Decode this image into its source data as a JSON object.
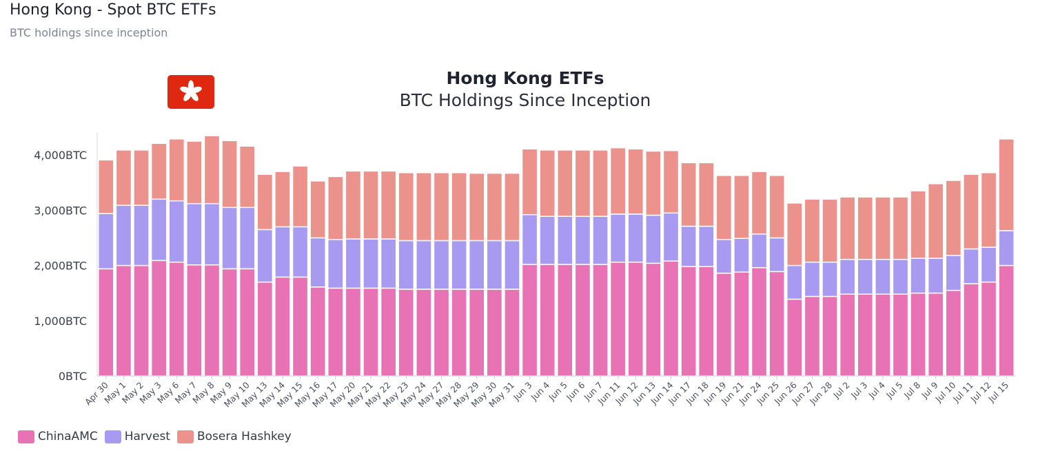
{
  "header": {
    "title": "Hong Kong - Spot BTC ETFs",
    "subtitle": "BTC holdings since inception"
  },
  "colors": {
    "ChinaAMC": "#e772b4",
    "Harvest": "#a89af0",
    "Bosera Hashkey": "#ec928d",
    "flag": "#de2910"
  },
  "chart_data": {
    "type": "bar",
    "stacked": true,
    "title": "Hong Kong ETFs",
    "subtitle": "BTC Holdings Since Inception",
    "xlabel": "",
    "ylabel": "",
    "ylim": [
      0,
      4400
    ],
    "yticks": [
      0,
      1000,
      2000,
      3000,
      4000
    ],
    "ytick_labels": [
      "0BTC",
      "1,000BTC",
      "2,000BTC",
      "3,000BTC",
      "4,000BTC"
    ],
    "legend_position": "bottom-left",
    "categories": [
      "Apr 30",
      "May 1",
      "May 2",
      "May 3",
      "May 6",
      "May 7",
      "May 8",
      "May 9",
      "May 10",
      "May 13",
      "May 14",
      "May 15",
      "May 16",
      "May 17",
      "May 20",
      "May 21",
      "May 22",
      "May 23",
      "May 24",
      "May 27",
      "May 28",
      "May 29",
      "May 30",
      "May 31",
      "Jun 3",
      "Jun 4",
      "Jun 5",
      "Jun 6",
      "Jun 7",
      "Jun 11",
      "Jun 12",
      "Jun 13",
      "Jun 14",
      "Jun 17",
      "Jun 18",
      "Jun 19",
      "Jun 21",
      "Jun 24",
      "Jun 25",
      "Jun 26",
      "Jun 27",
      "Jun 28",
      "Jul 2",
      "Jul 3",
      "Jul 4",
      "Jul 5",
      "Jul 8",
      "Jul 9",
      "Jul 10",
      "Jul 11",
      "Jul 12",
      "Jul 15"
    ],
    "series": [
      {
        "name": "ChinaAMC",
        "values": [
          1940,
          2000,
          2000,
          2090,
          2060,
          2010,
          2010,
          1940,
          1940,
          1700,
          1790,
          1790,
          1610,
          1590,
          1590,
          1590,
          1590,
          1570,
          1570,
          1570,
          1570,
          1570,
          1570,
          1570,
          2020,
          2020,
          2020,
          2020,
          2020,
          2060,
          2060,
          2040,
          2080,
          1980,
          1980,
          1860,
          1880,
          1960,
          1890,
          1390,
          1440,
          1440,
          1480,
          1480,
          1480,
          1480,
          1500,
          1500,
          1550,
          1670,
          1700,
          2000
        ]
      },
      {
        "name": "Harvest",
        "values": [
          1000,
          1090,
          1090,
          1110,
          1110,
          1110,
          1110,
          1110,
          1110,
          950,
          910,
          910,
          890,
          880,
          890,
          890,
          890,
          880,
          880,
          880,
          880,
          880,
          880,
          880,
          900,
          870,
          870,
          870,
          870,
          870,
          870,
          870,
          870,
          730,
          730,
          610,
          610,
          610,
          610,
          610,
          620,
          620,
          630,
          630,
          630,
          630,
          630,
          630,
          630,
          630,
          630,
          630
        ]
      },
      {
        "name": "Bosera Hashkey",
        "values": [
          970,
          1000,
          1000,
          1010,
          1120,
          1130,
          1230,
          1210,
          1110,
          1000,
          1000,
          1100,
          1030,
          1140,
          1230,
          1230,
          1230,
          1230,
          1230,
          1230,
          1230,
          1220,
          1220,
          1220,
          1190,
          1200,
          1200,
          1200,
          1200,
          1200,
          1180,
          1160,
          1130,
          1150,
          1150,
          1160,
          1140,
          1130,
          1130,
          1130,
          1140,
          1140,
          1130,
          1130,
          1130,
          1130,
          1220,
          1350,
          1360,
          1350,
          1350,
          1660
        ]
      }
    ]
  }
}
